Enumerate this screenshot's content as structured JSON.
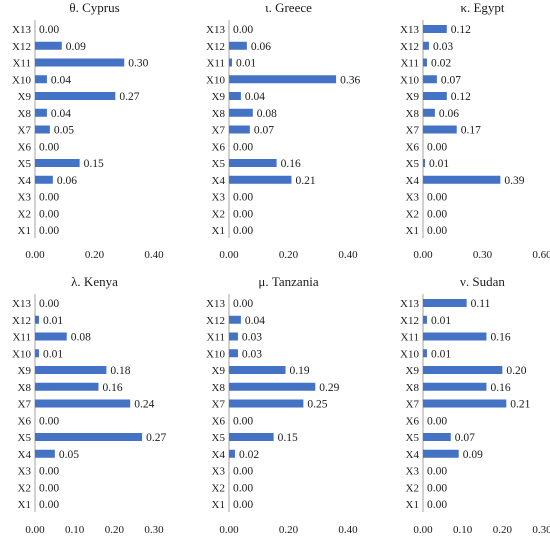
{
  "bar_color": "#4472C4",
  "chart_data": [
    {
      "type": "bar",
      "orientation": "horizontal",
      "title": "θ. Cyprus",
      "categories": [
        "X13",
        "X12",
        "X11",
        "X10",
        "X9",
        "X8",
        "X7",
        "X6",
        "X5",
        "X4",
        "X3",
        "X2",
        "X1"
      ],
      "values": [
        0.0,
        0.09,
        0.3,
        0.04,
        0.27,
        0.04,
        0.05,
        0.0,
        0.15,
        0.06,
        0.0,
        0.0,
        0.0
      ],
      "labels": [
        "0.00",
        "0.09",
        "0.30",
        "0.04",
        "0.27",
        "0.04",
        "0.05",
        "0.00",
        "0.15",
        "0.06",
        "0.00",
        "0.00",
        "0.00"
      ],
      "xlim": [
        0,
        0.4
      ],
      "ticks": [
        {
          "v": 0,
          "label": "0.00"
        },
        {
          "v": 0.2,
          "label": "0.20"
        },
        {
          "v": 0.4,
          "label": "0.40"
        }
      ]
    },
    {
      "type": "bar",
      "orientation": "horizontal",
      "title": "ι. Greece",
      "categories": [
        "X13",
        "X12",
        "X11",
        "X10",
        "X9",
        "X8",
        "X7",
        "X6",
        "X5",
        "X4",
        "X3",
        "X2",
        "X1"
      ],
      "values": [
        0.0,
        0.06,
        0.01,
        0.36,
        0.04,
        0.08,
        0.07,
        0.0,
        0.16,
        0.21,
        0.0,
        0.0,
        0.0
      ],
      "labels": [
        "0.00",
        "0.06",
        "0.01",
        "0.36",
        "0.04",
        "0.08",
        "0.07",
        "0.00",
        "0.16",
        "0.21",
        "0.00",
        "0.00",
        "0.00"
      ],
      "xlim": [
        0,
        0.4
      ],
      "ticks": [
        {
          "v": 0,
          "label": "0.00"
        },
        {
          "v": 0.2,
          "label": "0.20"
        },
        {
          "v": 0.4,
          "label": "0.40"
        }
      ]
    },
    {
      "type": "bar",
      "orientation": "horizontal",
      "title": "κ. Egypt",
      "categories": [
        "X13",
        "X12",
        "X11",
        "X10",
        "X9",
        "X8",
        "X7",
        "X6",
        "X5",
        "X4",
        "X3",
        "X2",
        "X1"
      ],
      "values": [
        0.12,
        0.03,
        0.02,
        0.07,
        0.12,
        0.06,
        0.17,
        0.0,
        0.01,
        0.39,
        0.0,
        0.0,
        0.0
      ],
      "labels": [
        "0.12",
        "0.03",
        "0.02",
        "0.07",
        "0.12",
        "0.06",
        "0.17",
        "0.00",
        "0.01",
        "0.39",
        "0.00",
        "0.00",
        "0.00"
      ],
      "xlim": [
        0,
        0.6
      ],
      "ticks": [
        {
          "v": 0,
          "label": "0.00"
        },
        {
          "v": 0.3,
          "label": "0.30"
        },
        {
          "v": 0.6,
          "label": "0.60"
        }
      ]
    },
    {
      "type": "bar",
      "orientation": "horizontal",
      "title": "λ. Kenya",
      "categories": [
        "X13",
        "X12",
        "X11",
        "X10",
        "X9",
        "X8",
        "X7",
        "X6",
        "X5",
        "X4",
        "X3",
        "X2",
        "X1"
      ],
      "values": [
        0.0,
        0.01,
        0.08,
        0.01,
        0.18,
        0.16,
        0.24,
        0.0,
        0.27,
        0.05,
        0.0,
        0.0,
        0.0
      ],
      "labels": [
        "0.00",
        "0.01",
        "0.08",
        "0.01",
        "0.18",
        "0.16",
        "0.24",
        "0.00",
        "0.27",
        "0.05",
        "0.00",
        "0.00",
        "0.00"
      ],
      "xlim": [
        0,
        0.3
      ],
      "ticks": [
        {
          "v": 0,
          "label": "0.00"
        },
        {
          "v": 0.1,
          "label": "0.10"
        },
        {
          "v": 0.2,
          "label": "0.20"
        },
        {
          "v": 0.3,
          "label": "0.30"
        }
      ]
    },
    {
      "type": "bar",
      "orientation": "horizontal",
      "title": "μ. Tanzania",
      "categories": [
        "X13",
        "X12",
        "X11",
        "X10",
        "X9",
        "X8",
        "X7",
        "X6",
        "X5",
        "X4",
        "X3",
        "X2",
        "X1"
      ],
      "values": [
        0.0,
        0.04,
        0.03,
        0.03,
        0.19,
        0.29,
        0.25,
        0.0,
        0.15,
        0.02,
        0.0,
        0.0,
        0.0
      ],
      "labels": [
        "0.00",
        "0.04",
        "0.03",
        "0.03",
        "0.19",
        "0.29",
        "0.25",
        "0.00",
        "0.15",
        "0.02",
        "0.00",
        "0.00",
        "0.00"
      ],
      "xlim": [
        0,
        0.4
      ],
      "ticks": [
        {
          "v": 0,
          "label": "0.00"
        },
        {
          "v": 0.2,
          "label": "0.20"
        },
        {
          "v": 0.4,
          "label": "0.40"
        }
      ]
    },
    {
      "type": "bar",
      "orientation": "horizontal",
      "title": "ν. Sudan",
      "categories": [
        "X13",
        "X12",
        "X11",
        "X10",
        "X9",
        "X8",
        "X7",
        "X6",
        "X5",
        "X4",
        "X3",
        "X2",
        "X1"
      ],
      "values": [
        0.11,
        0.01,
        0.16,
        0.01,
        0.2,
        0.16,
        0.21,
        0.0,
        0.07,
        0.09,
        0.0,
        0.0,
        0.0
      ],
      "labels": [
        "0.11",
        "0.01",
        "0.16",
        "0.01",
        "0.20",
        "0.16",
        "0.21",
        "0.00",
        "0.07",
        "0.09",
        "0.00",
        "0.00",
        "0.00"
      ],
      "xlim": [
        0,
        0.3
      ],
      "ticks": [
        {
          "v": 0,
          "label": "0.00"
        },
        {
          "v": 0.1,
          "label": "0.10"
        },
        {
          "v": 0.2,
          "label": "0.20"
        },
        {
          "v": 0.3,
          "label": "0.30"
        }
      ]
    }
  ]
}
